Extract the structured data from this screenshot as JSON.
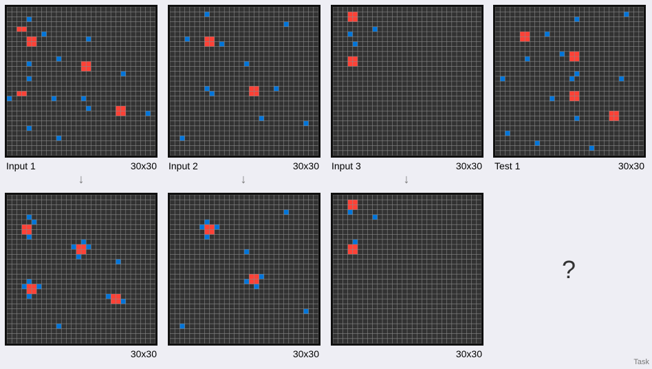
{
  "colors": {
    "background": "#323232",
    "gridline": "#8a8a8a",
    "red": "#ff4136",
    "blue": "#0074d9"
  },
  "grid_size": 30,
  "panels": [
    {
      "id": "input-1",
      "label": "Input 1",
      "size": "30x30",
      "red": [
        [
          2,
          4
        ],
        [
          2,
          17
        ],
        [
          3,
          4
        ],
        [
          3,
          17
        ],
        [
          4,
          6
        ],
        [
          4,
          7
        ],
        [
          5,
          6
        ],
        [
          5,
          7
        ],
        [
          15,
          11
        ],
        [
          15,
          12
        ],
        [
          16,
          11
        ],
        [
          16,
          12
        ],
        [
          22,
          20
        ],
        [
          22,
          21
        ],
        [
          23,
          20
        ],
        [
          23,
          21
        ]
      ],
      "blue": [
        [
          0,
          18
        ],
        [
          4,
          2
        ],
        [
          4,
          11
        ],
        [
          4,
          14
        ],
        [
          4,
          24
        ],
        [
          7,
          5
        ],
        [
          9,
          18
        ],
        [
          10,
          10
        ],
        [
          10,
          26
        ],
        [
          15,
          18
        ],
        [
          16,
          6
        ],
        [
          16,
          20
        ],
        [
          23,
          13
        ],
        [
          28,
          21
        ]
      ]
    },
    {
      "id": "output-1",
      "size": "30x30",
      "red": [
        [
          3,
          6
        ],
        [
          3,
          7
        ],
        [
          4,
          6
        ],
        [
          4,
          7
        ],
        [
          4,
          18
        ],
        [
          4,
          19
        ],
        [
          5,
          18
        ],
        [
          5,
          19
        ],
        [
          14,
          10
        ],
        [
          14,
          11
        ],
        [
          15,
          10
        ],
        [
          15,
          11
        ],
        [
          21,
          20
        ],
        [
          21,
          21
        ],
        [
          22,
          20
        ],
        [
          22,
          21
        ]
      ],
      "blue": [
        [
          3,
          18
        ],
        [
          4,
          4
        ],
        [
          4,
          8
        ],
        [
          4,
          17
        ],
        [
          4,
          20
        ],
        [
          5,
          5
        ],
        [
          6,
          18
        ],
        [
          10,
          26
        ],
        [
          13,
          10
        ],
        [
          14,
          12
        ],
        [
          15,
          9
        ],
        [
          16,
          10
        ],
        [
          20,
          20
        ],
        [
          22,
          13
        ],
        [
          23,
          21
        ]
      ]
    },
    {
      "id": "input-2",
      "label": "Input 2",
      "size": "30x30",
      "red": [
        [
          7,
          6
        ],
        [
          7,
          7
        ],
        [
          8,
          6
        ],
        [
          8,
          7
        ],
        [
          16,
          16
        ],
        [
          16,
          17
        ],
        [
          17,
          16
        ],
        [
          17,
          17
        ]
      ],
      "blue": [
        [
          2,
          26
        ],
        [
          3,
          6
        ],
        [
          7,
          1
        ],
        [
          7,
          16
        ],
        [
          8,
          17
        ],
        [
          10,
          7
        ],
        [
          15,
          11
        ],
        [
          18,
          22
        ],
        [
          21,
          16
        ],
        [
          23,
          3
        ],
        [
          27,
          23
        ]
      ]
    },
    {
      "id": "output-2",
      "size": "30x30",
      "red": [
        [
          7,
          6
        ],
        [
          7,
          7
        ],
        [
          8,
          6
        ],
        [
          8,
          7
        ],
        [
          16,
          16
        ],
        [
          16,
          17
        ],
        [
          17,
          16
        ],
        [
          17,
          17
        ]
      ],
      "blue": [
        [
          2,
          26
        ],
        [
          6,
          6
        ],
        [
          7,
          5
        ],
        [
          7,
          8
        ],
        [
          9,
          6
        ],
        [
          15,
          11
        ],
        [
          15,
          17
        ],
        [
          17,
          18
        ],
        [
          18,
          16
        ],
        [
          23,
          3
        ],
        [
          27,
          23
        ]
      ]
    },
    {
      "id": "input-3",
      "label": "Input 3",
      "size": "30x30",
      "red": [
        [
          3,
          1
        ],
        [
          3,
          2
        ],
        [
          4,
          1
        ],
        [
          4,
          2
        ],
        [
          3,
          10
        ],
        [
          3,
          11
        ],
        [
          4,
          10
        ],
        [
          4,
          11
        ]
      ],
      "blue": [
        [
          3,
          5
        ],
        [
          4,
          7
        ],
        [
          8,
          4
        ]
      ]
    },
    {
      "id": "output-3",
      "size": "30x30",
      "red": [
        [
          3,
          1
        ],
        [
          3,
          2
        ],
        [
          4,
          1
        ],
        [
          4,
          2
        ],
        [
          3,
          10
        ],
        [
          3,
          11
        ],
        [
          4,
          10
        ],
        [
          4,
          11
        ]
      ],
      "blue": [
        [
          3,
          3
        ],
        [
          4,
          9
        ],
        [
          8,
          4
        ]
      ]
    },
    {
      "id": "test-1",
      "label": "Test 1",
      "size": "30x30",
      "red": [
        [
          5,
          5
        ],
        [
          5,
          6
        ],
        [
          6,
          5
        ],
        [
          6,
          6
        ],
        [
          15,
          9
        ],
        [
          15,
          10
        ],
        [
          16,
          9
        ],
        [
          16,
          10
        ],
        [
          15,
          17
        ],
        [
          15,
          18
        ],
        [
          16,
          17
        ],
        [
          16,
          18
        ],
        [
          23,
          21
        ],
        [
          23,
          22
        ],
        [
          24,
          21
        ],
        [
          24,
          22
        ]
      ],
      "blue": [
        [
          1,
          14
        ],
        [
          2,
          25
        ],
        [
          6,
          10
        ],
        [
          8,
          27
        ],
        [
          10,
          5
        ],
        [
          11,
          18
        ],
        [
          13,
          9
        ],
        [
          15,
          14
        ],
        [
          16,
          2
        ],
        [
          16,
          13
        ],
        [
          16,
          22
        ],
        [
          19,
          28
        ],
        [
          25,
          14
        ],
        [
          26,
          1
        ]
      ]
    }
  ],
  "arrow_glyph": "↓",
  "question_mark": "?",
  "footer": "Task"
}
